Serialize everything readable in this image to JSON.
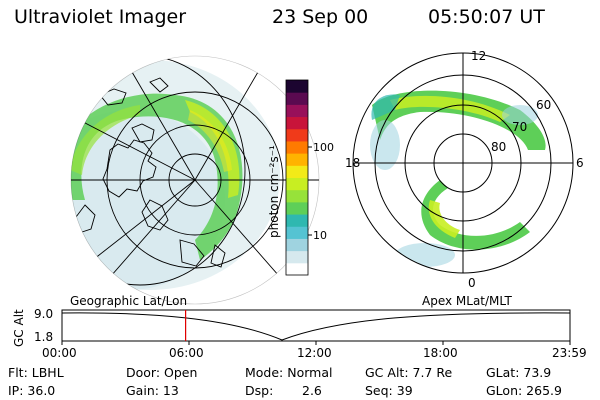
{
  "header": {
    "instrument": "Ultraviolet Imager",
    "date": "23 Sep 00",
    "time": "05:50:07 UT"
  },
  "colorbar": {
    "unit_label": "photon cm⁻²s⁻¹",
    "tick_labels": [
      "100",
      "10"
    ],
    "colors": [
      "#ffffff",
      "#d6e9ee",
      "#9fd3e0",
      "#55c3d2",
      "#2fb8b0",
      "#5ecf58",
      "#97e23a",
      "#c8ee22",
      "#f3ea18",
      "#ffb300",
      "#ff7a00",
      "#f03a1a",
      "#c8143a",
      "#98105a",
      "#5a0a50",
      "#1c0530"
    ]
  },
  "left_panel": {
    "label": "Geographic Lat/Lon"
  },
  "right_panel": {
    "label": "Apex MLat/MLT",
    "mlt_labels": {
      "top": "12",
      "left": "18",
      "right": "6",
      "bottom": "0"
    },
    "lat_labels": [
      "60",
      "70",
      "80"
    ]
  },
  "altitude_plot": {
    "ylabel": "GC Alt",
    "ytick_labels": [
      "9.0",
      "1.8"
    ],
    "xtick_labels": [
      "00:00",
      "06:00",
      "12:00",
      "18:00",
      "23:59"
    ],
    "current_time_marker_hours": 5.84
  },
  "info": {
    "filter": "Flt: LBHL",
    "ip": "IP: 36.0",
    "door": "Door: Open",
    "gain": "Gain: 13",
    "mode": "Mode: Normal",
    "dsp_label": "Dsp:",
    "dsp_value": "2.6",
    "gc_alt": "GC Alt: 7.7 Re",
    "seq": "Seq: 39",
    "glat": "GLat: 73.9",
    "glon": "GLon: 265.9"
  }
}
